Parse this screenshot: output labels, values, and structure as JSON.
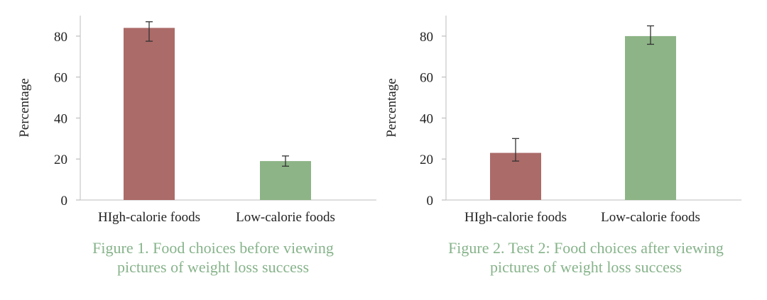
{
  "chart_data": [
    {
      "type": "bar",
      "ylabel": "Percentage",
      "ylim": [
        0,
        90
      ],
      "yticks": [
        0,
        20,
        40,
        60,
        80
      ],
      "categories": [
        "HIgh-calorie foods",
        "Low-calorie foods"
      ],
      "values": [
        84,
        19
      ],
      "error_low": [
        77.5,
        16.5
      ],
      "error_high": [
        87,
        21.5
      ],
      "bar_colors": [
        "#ab6b68",
        "#8db486"
      ],
      "caption": [
        "Figure 1. Food choices before viewing",
        "pictures of weight loss success"
      ]
    },
    {
      "type": "bar",
      "ylabel": "Percentage",
      "ylim": [
        0,
        90
      ],
      "yticks": [
        0,
        20,
        40,
        60,
        80
      ],
      "categories": [
        "HIgh-calorie foods",
        "Low-calorie foods"
      ],
      "values": [
        23,
        80
      ],
      "error_low": [
        19,
        76
      ],
      "error_high": [
        30,
        85
      ],
      "bar_colors": [
        "#ab6b68",
        "#8db486"
      ],
      "caption": [
        "Figure 2. Test 2: Food choices after viewing",
        "pictures of weight loss success"
      ]
    }
  ]
}
